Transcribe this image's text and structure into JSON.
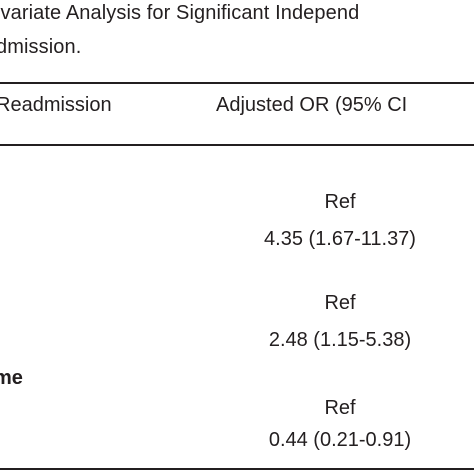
{
  "caption": {
    "line1": "ivariate Analysis for Significant Independ",
    "line2": "dmission."
  },
  "table": {
    "headers": {
      "readmission": "Readmission",
      "adjusted_or": "Adjusted OR (95% CI"
    },
    "rows": [
      {
        "value": "Ref"
      },
      {
        "value": "4.35 (1.67-11.37)"
      },
      {
        "value": "Ref"
      },
      {
        "value": "2.48 (1.15-5.38)"
      },
      {
        "label": "me"
      },
      {
        "value": "Ref"
      },
      {
        "value": "0.44 (0.21-0.91)"
      }
    ]
  }
}
